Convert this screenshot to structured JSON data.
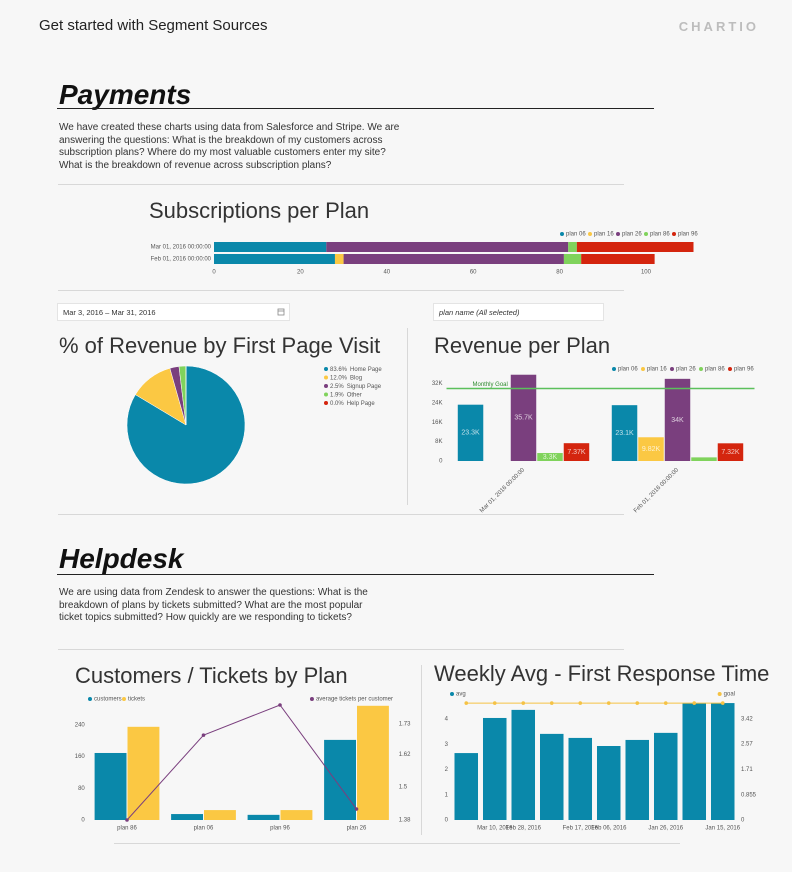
{
  "header": {
    "title": "Get started with Segment Sources",
    "logo": "CHARTIO"
  },
  "sections": [
    {
      "title": "Payments",
      "description": "We have created these charts using data from Salesforce and Stripe. We are answering the questions: What is the breakdown of my customers across subscription plans? Where do my most valuable customers enter my site? What is the breakdown of revenue across subscription plans?"
    },
    {
      "title": "Helpdesk",
      "description": "We are using data from Zendesk to answer the questions: What is the breakdown of plans by tickets submitted? What are the most popular ticket topics submitted? How quickly are we responding to tickets?"
    }
  ],
  "controls": {
    "date_range": "Mar 3, 2016 – Mar 31, 2016",
    "plan_filter": "plan name (All selected)"
  },
  "chart_data": [
    {
      "type": "hbar_stacked",
      "title": "Subscriptions per Plan",
      "categories": [
        "Mar 01, 2016 00:00:00",
        "Feb 01, 2016 00:00:00"
      ],
      "series": [
        {
          "name": "plan 06",
          "color": "#0a88aa",
          "values": [
            26,
            28
          ]
        },
        {
          "name": "plan 16",
          "color": "#fbc843",
          "values": [
            0,
            2
          ]
        },
        {
          "name": "plan 26",
          "color": "#7a3f7e",
          "values": [
            56,
            51
          ]
        },
        {
          "name": "plan 86",
          "color": "#80d35c",
          "values": [
            2,
            4
          ]
        },
        {
          "name": "plan 96",
          "color": "#d4250e",
          "values": [
            27,
            17
          ]
        }
      ],
      "xlim": [
        0,
        111
      ],
      "xticks": [
        0,
        20,
        40,
        60,
        80,
        100
      ]
    },
    {
      "type": "pie",
      "title": "% of Revenue by First Page Visit",
      "categories": [
        "Home Page",
        "Blog",
        "Signup Page",
        "Other",
        "Help Page"
      ],
      "values": [
        83.6,
        12,
        2.5,
        1.9,
        0
      ],
      "value_labels": [
        "83.6%",
        "12.0%",
        "2.5%",
        "1.9%",
        "0.0%"
      ],
      "colors": [
        "#0a88aa",
        "#fbc843",
        "#7a3f7e",
        "#80d35c",
        "#d4250e"
      ]
    },
    {
      "type": "bar",
      "title": "Revenue per Plan",
      "categories": [
        "Mar 01, 2016 00:00:00",
        "Feb 01, 2016 00:00:00"
      ],
      "series": [
        {
          "name": "plan 06",
          "color": "#0a88aa",
          "values": [
            23300,
            23100
          ],
          "value_labels": [
            "23.3K",
            "23.1K"
          ]
        },
        {
          "name": "plan 16",
          "color": "#fbc843",
          "values": [
            0,
            9820
          ],
          "value_labels": [
            null,
            "9.82K"
          ]
        },
        {
          "name": "plan 26",
          "color": "#7a3f7e",
          "values": [
            35700,
            34000
          ],
          "value_labels": [
            "35.7K",
            "34K"
          ]
        },
        {
          "name": "plan 86",
          "color": "#80d35c",
          "values": [
            3300,
            1500
          ],
          "value_labels": [
            "3.3K",
            null
          ]
        },
        {
          "name": "plan 96",
          "color": "#d4250e",
          "values": [
            7370,
            7320
          ],
          "value_labels": [
            "7.37K",
            "7.32K"
          ]
        }
      ],
      "ylim": [
        0,
        36000
      ],
      "yticks": [
        0,
        {
          "value": 8000,
          "label": "8K"
        },
        {
          "value": 16000,
          "label": "16K"
        },
        {
          "value": 24000,
          "label": "24K"
        },
        {
          "value": 32000,
          "label": "32K"
        }
      ],
      "annotations": [
        {
          "text": "Monthly Goal",
          "value": 30000,
          "color": "#5cc05c"
        }
      ],
      "rotate_x_labels": true
    },
    {
      "type": "bar",
      "title": "Customers / Tickets by Plan",
      "categories": [
        "plan 86",
        "plan 06",
        "plan 96",
        "plan 26"
      ],
      "series": [
        {
          "name": "customers",
          "color": "#0a88aa",
          "values": [
            169,
            15,
            13,
            202
          ]
        },
        {
          "name": "tickets",
          "color": "#fbc843",
          "values": [
            235,
            25,
            25,
            288
          ]
        },
        {
          "name": "average tickets per customer",
          "color": "#7a3f7e",
          "type": "line",
          "axis": "y2",
          "values": [
            1.38,
            1.69,
            1.8,
            1.42
          ]
        }
      ],
      "ylim": [
        0,
        290
      ],
      "yticks": [
        0,
        80,
        160,
        240
      ],
      "y2lim": [
        1.38,
        1.8
      ],
      "y2ticks": [
        1.38,
        1.5,
        1.62,
        1.73
      ]
    },
    {
      "type": "bar",
      "title": "Weekly Avg - First Response Time",
      "categories": [
        null,
        "Mar 10, 2016",
        "Feb 28, 2016",
        null,
        "Feb 17, 2016",
        "Feb 06, 2016",
        null,
        "Jan 26, 2016",
        null,
        "Jan 15, 2016"
      ],
      "series": [
        {
          "name": "avg",
          "color": "#0a88aa",
          "values": [
            2.65,
            4.04,
            4.36,
            3.41,
            3.25,
            2.93,
            3.17,
            3.45,
            4.63,
            4.63
          ]
        },
        {
          "name": "goal",
          "color": "#f5c244",
          "type": "line",
          "axis": "y2",
          "values": [
            3.96,
            3.96,
            3.96,
            3.96,
            3.96,
            3.96,
            3.96,
            3.96,
            3.96,
            3.96
          ]
        }
      ],
      "ylim": [
        0,
        4.7
      ],
      "yticks": [
        0,
        1,
        2,
        3,
        4
      ],
      "y2lim": [
        0,
        4.02
      ],
      "y2ticks": [
        0,
        0.855,
        1.71,
        2.57,
        3.42
      ]
    }
  ]
}
